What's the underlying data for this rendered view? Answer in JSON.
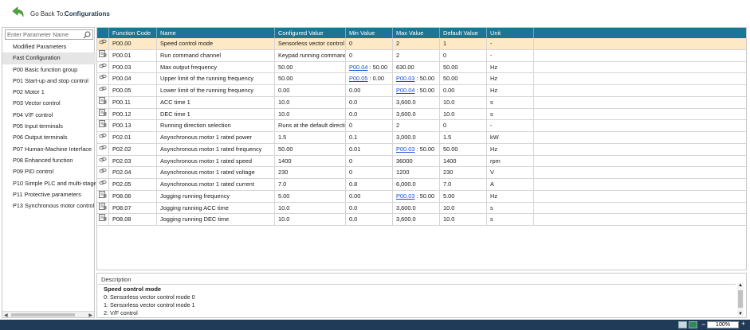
{
  "header": {
    "go_back_label": "Go Back To:",
    "go_back_target": "Configurations"
  },
  "sidebar": {
    "search_placeholder": "Enter Parameter Name",
    "items": [
      {
        "label": "Modified Parameters"
      },
      {
        "label": "Fast Configuration"
      },
      {
        "label": "P00 Basic function group"
      },
      {
        "label": "P01 Start-up and stop control"
      },
      {
        "label": "P02 Motor 1"
      },
      {
        "label": "P03 Vector control"
      },
      {
        "label": "P04 V/F control"
      },
      {
        "label": "P05 Input terminals"
      },
      {
        "label": "P06 Output terminals"
      },
      {
        "label": "P07 Human-Machine Interface"
      },
      {
        "label": "P08 Enhanced function"
      },
      {
        "label": "P09 PID control"
      },
      {
        "label": "P10 Simple PLC and multi-stage"
      },
      {
        "label": "P11 Protective parameters"
      },
      {
        "label": "P13 Synchronous motor control"
      }
    ],
    "selected_index": 1
  },
  "table": {
    "columns": [
      "Function Code",
      "Name",
      "Configured Value",
      "Min Value",
      "Max Value",
      "Default Value",
      "Unit"
    ],
    "rows": [
      {
        "icon": "link-icon",
        "code": "P00.00",
        "name": "Speed control mode",
        "configured": "Sensorless vector control m",
        "min": "0",
        "min_link": "",
        "max": "2",
        "max_link": "",
        "default": "1",
        "unit": "-"
      },
      {
        "icon": "param-icon",
        "code": "P00.01",
        "name": "Run command channel",
        "configured": "Keypad running command",
        "min": "0",
        "min_link": "",
        "max": "2",
        "max_link": "",
        "default": "0",
        "unit": "-"
      },
      {
        "icon": "link-icon",
        "code": "P00.03",
        "name": "Max output frequency",
        "configured": "50.00",
        "min": "",
        "min_link": "P00.04",
        "min_suffix": " : 50.00",
        "max": "630.00",
        "max_link": "",
        "default": "50.00",
        "unit": "Hz"
      },
      {
        "icon": "link-icon",
        "code": "P00.04",
        "name": "Upper limit of the running frequency",
        "configured": "50.00",
        "min": "",
        "min_link": "P00.05",
        "min_suffix": " : 0.00",
        "max": "",
        "max_link": "P00.03",
        "max_suffix": " : 50.00",
        "default": "50.00",
        "unit": "Hz"
      },
      {
        "icon": "link-icon",
        "code": "P00.05",
        "name": "Lower limit of the running frequency",
        "configured": "0.00",
        "min": "0.00",
        "min_link": "",
        "max": "",
        "max_link": "P00.04",
        "max_suffix": " : 50.00",
        "default": "0.00",
        "unit": "Hz"
      },
      {
        "icon": "param-icon",
        "code": "P00.11",
        "name": "ACC time 1",
        "configured": "10.0",
        "min": "0.0",
        "min_link": "",
        "max": "3,600.0",
        "max_link": "",
        "default": "10.0",
        "unit": "s"
      },
      {
        "icon": "param-icon",
        "code": "P00.12",
        "name": "DEC time 1",
        "configured": "10.0",
        "min": "0.0",
        "min_link": "",
        "max": "3,600.0",
        "max_link": "",
        "default": "10.0",
        "unit": "s"
      },
      {
        "icon": "param-icon",
        "code": "P00.13",
        "name": "Running direction selection",
        "configured": "Runs at the default directio",
        "min": "0",
        "min_link": "",
        "max": "2",
        "max_link": "",
        "default": "0",
        "unit": "-"
      },
      {
        "icon": "link-icon",
        "code": "P02.01",
        "name": "Asynchronous motor 1 rated power",
        "configured": "1.5",
        "min": "0.1",
        "min_link": "",
        "max": "3,000.0",
        "max_link": "",
        "default": "1.5",
        "unit": "kW"
      },
      {
        "icon": "link-icon",
        "code": "P02.02",
        "name": "Asynchronous motor 1 rated frequency",
        "configured": "50.00",
        "min": "0.01",
        "min_link": "",
        "max": "",
        "max_link": "P00.03",
        "max_suffix": " : 50.00",
        "default": "50.00",
        "unit": "Hz"
      },
      {
        "icon": "link-icon",
        "code": "P02.03",
        "name": "Asynchronous motor 1 rated speed",
        "configured": "1400",
        "min": "0",
        "min_link": "",
        "max": "36000",
        "max_link": "",
        "default": "1400",
        "unit": "rpm"
      },
      {
        "icon": "link-icon",
        "code": "P02.04",
        "name": "Asynchronous motor 1 rated voltage",
        "configured": "230",
        "min": "0",
        "min_link": "",
        "max": "1200",
        "max_link": "",
        "default": "230",
        "unit": "V"
      },
      {
        "icon": "link-icon",
        "code": "P02.05",
        "name": "Asynchronous motor 1 rated current",
        "configured": "7.0",
        "min": "0.8",
        "min_link": "",
        "max": "6,000.0",
        "max_link": "",
        "default": "7.0",
        "unit": "A"
      },
      {
        "icon": "param-icon",
        "code": "P08.06",
        "name": "Jogging running frequency",
        "configured": "5.00",
        "min": "0.00",
        "min_link": "",
        "max": "",
        "max_link": "P00.03",
        "max_suffix": " : 50.00",
        "default": "5.00",
        "unit": "Hz"
      },
      {
        "icon": "param-icon",
        "code": "P08.07",
        "name": "Jogging running ACC time",
        "configured": "10.0",
        "min": "0.0",
        "min_link": "",
        "max": "3,600.0",
        "max_link": "",
        "default": "10.0",
        "unit": "s"
      },
      {
        "icon": "param-icon",
        "code": "P08.08",
        "name": "Jogging running DEC time",
        "configured": "10.0",
        "min": "0.0",
        "min_link": "",
        "max": "3,600.0",
        "max_link": "",
        "default": "10.0",
        "unit": "s"
      }
    ],
    "selected_row": 0
  },
  "description": {
    "title": "Description",
    "heading": "Speed control mode",
    "lines": [
      "0: Sensorless vector control mode 0",
      "1: Sensorless vector control mode 1",
      "2: V/F control"
    ]
  },
  "statusbar": {
    "zoom": "100%"
  },
  "colors": {
    "header_bg": "#1c7594",
    "selected_row": "#fde9c6",
    "statusbar": "#1f3b57",
    "link": "#1a4fd6"
  }
}
